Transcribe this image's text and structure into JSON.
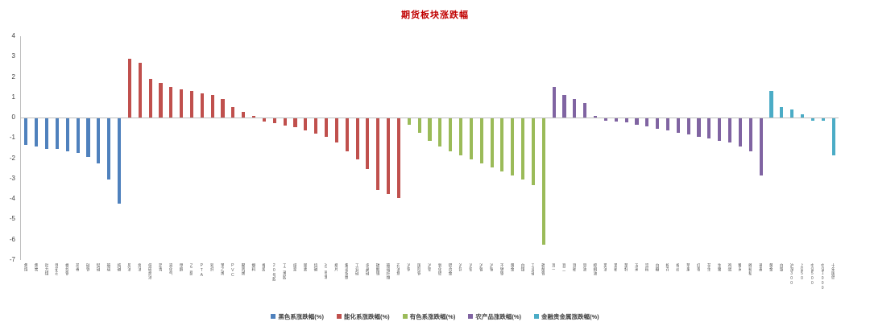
{
  "chart_data": {
    "type": "bar",
    "title": "期货板块涨跌幅",
    "xlabel": "",
    "ylabel": "",
    "ylim": [
      -7,
      4
    ],
    "yticks": [
      4,
      3,
      2,
      1,
      0,
      -1,
      -2,
      -3,
      -4,
      -5,
      -6,
      -7
    ],
    "grid": false,
    "legend_position": "bottom",
    "series": [
      {
        "name": "黑色系涨跌幅(%)",
        "color": "#4F81BD",
        "categories": [
          "焦煤",
          "焦炭",
          "动力煤",
          "铁矿石",
          "螺纹钢",
          "热卷",
          "硅铁",
          "锰硅",
          "玻璃",
          "纯碱"
        ],
        "values": [
          -1.3,
          -1.4,
          -1.5,
          -1.5,
          -1.6,
          -1.7,
          -1.9,
          -2.2,
          -3.0,
          -4.2
        ]
      },
      {
        "name": "能化系涨跌幅(%)",
        "color": "#C0504D",
        "categories": [
          "原油",
          "燃油",
          "低硫燃油",
          "沥青",
          "液化气",
          "甲醇",
          "乙二醇",
          "PTA",
          "短纤",
          "苯乙烯",
          "PVC",
          "聚丙烯",
          "塑料",
          "橡胶",
          "20号胶",
          "丁二烯胶",
          "纸浆",
          "尿素",
          "烧碱",
          "对二甲苯",
          "瓶片",
          "集运指数",
          "工业硅",
          "多晶硅",
          "碳酸锂",
          "玻璃纤维",
          "石油焦"
        ],
        "values": [
          2.9,
          2.7,
          1.9,
          1.7,
          1.5,
          1.4,
          1.3,
          1.2,
          1.1,
          0.9,
          0.5,
          0.3,
          0.1,
          -0.15,
          -0.25,
          -0.35,
          -0.45,
          -0.6,
          -0.75,
          -0.9,
          -1.2,
          -1.6,
          -2.0,
          -2.5,
          -3.5,
          -3.7,
          -3.9
        ]
      },
      {
        "name": "有色系涨跌幅(%)",
        "color": "#9BBB59",
        "categories": [
          "沪铜",
          "国际铜",
          "沪铝",
          "氧化铝",
          "铝合金",
          "沪锌",
          "沪铅",
          "沪镍",
          "沪锡",
          "不锈钢",
          "黄金",
          "白银",
          "工业硅",
          "碳酸锂"
        ],
        "values": [
          -0.3,
          -0.7,
          -1.1,
          -1.4,
          -1.6,
          -1.8,
          -2.0,
          -2.2,
          -2.4,
          -2.6,
          -2.8,
          -3.0,
          -3.3,
          -6.2
        ]
      },
      {
        "name": "农产品涨跌幅(%)",
        "color": "#8064A2",
        "categories": [
          "豆一",
          "豆二",
          "豆粕",
          "豆油",
          "棕榈油",
          "菜油",
          "菜粕",
          "菜籽",
          "玉米",
          "淀粉",
          "白糖",
          "棉花",
          "棉纱",
          "苹果",
          "红枣",
          "花生",
          "生猪",
          "鸡蛋",
          "粳米",
          "晚籼稻",
          "普麦"
        ],
        "values": [
          1.5,
          1.1,
          0.9,
          0.7,
          0.1,
          -0.1,
          -0.15,
          -0.2,
          -0.3,
          -0.4,
          -0.5,
          -0.6,
          -0.7,
          -0.8,
          -0.9,
          -1.0,
          -1.1,
          -1.2,
          -1.4,
          -1.6,
          -2.8
        ]
      },
      {
        "name": "金融贵金属涨跌幅(%)",
        "color": "#4BACC6",
        "categories": [
          "黄金",
          "白银",
          "沪深300",
          "上证50",
          "中证500",
          "中证1000",
          "十年国债"
        ],
        "values": [
          1.3,
          0.5,
          0.4,
          0.15,
          -0.1,
          -0.1,
          -1.8
        ]
      }
    ]
  }
}
